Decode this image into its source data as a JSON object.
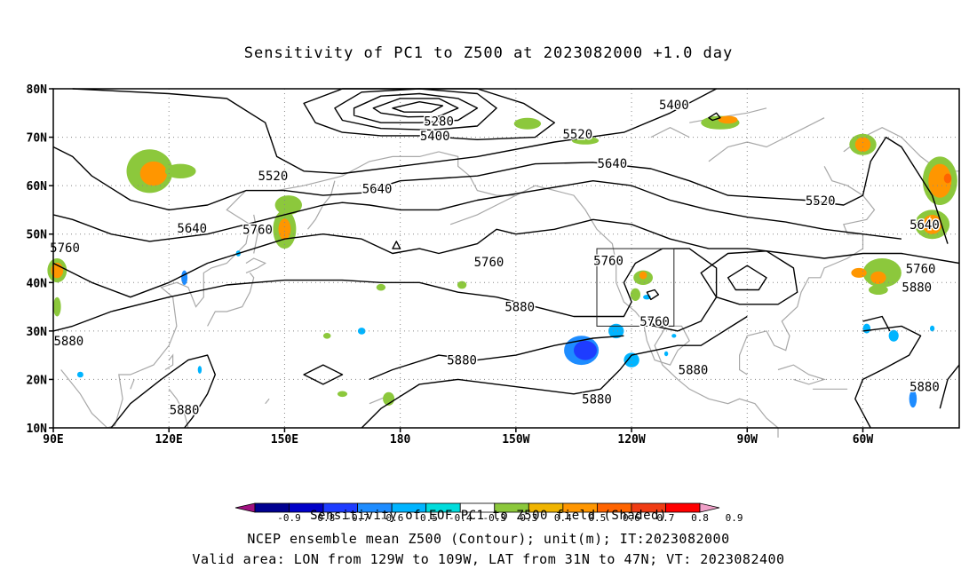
{
  "chart_data": {
    "type": "heatmap",
    "title": "Sensitivity of PC1 to Z500 at 2023082000 +1.0 day",
    "x_ticks": [
      "90E",
      "120E",
      "150E",
      "180",
      "150W",
      "120W",
      "90W",
      "60W"
    ],
    "y_ticks": [
      "80N",
      "70N",
      "60N",
      "50N",
      "40N",
      "30N",
      "20N",
      "10N"
    ],
    "xlim_deg_east": [
      90,
      325
    ],
    "ylim_deg_north": [
      10,
      80
    ],
    "grid": true,
    "colorbar": {
      "labels": [
        "-0.9",
        "-0.8",
        "-0.7",
        "-0.6",
        "-0.5",
        "-0.4",
        "-0.3",
        "0.3",
        "0.4",
        "0.5",
        "0.6",
        "0.7",
        "0.8",
        "0.9"
      ],
      "colors": [
        "#a01080",
        "#000090",
        "#0000c8",
        "#1e3cff",
        "#1e8cff",
        "#00b4ff",
        "#00dcdc",
        "#ffffff",
        "#8cc83c",
        "#f0b400",
        "#ff9600",
        "#ff6400",
        "#f03c14",
        "#ff0000",
        "#f0a0c8"
      ]
    },
    "contour_labels": [
      {
        "text": "5280",
        "lon": 190,
        "lat": 73.3
      },
      {
        "text": "5400",
        "lon": 189,
        "lat": 70.3
      },
      {
        "text": "5400",
        "lon": 251,
        "lat": 76.7
      },
      {
        "text": "5520",
        "lon": 147,
        "lat": 62.0
      },
      {
        "text": "5520",
        "lon": 226,
        "lat": 70.7
      },
      {
        "text": "5520",
        "lon": 289,
        "lat": 56.9
      },
      {
        "text": "5640",
        "lon": 174,
        "lat": 59.4
      },
      {
        "text": "5640",
        "lon": 235,
        "lat": 64.6
      },
      {
        "text": "5640",
        "lon": 126,
        "lat": 51.2
      },
      {
        "text": "5640",
        "lon": 316,
        "lat": 52.0
      },
      {
        "text": "5760",
        "lon": 93,
        "lat": 47.2
      },
      {
        "text": "5760",
        "lon": 143,
        "lat": 51.0
      },
      {
        "text": "5760",
        "lon": 203,
        "lat": 44.3
      },
      {
        "text": "5760",
        "lon": 234,
        "lat": 44.5
      },
      {
        "text": "5760",
        "lon": 246,
        "lat": 32.0
      },
      {
        "text": "5760",
        "lon": 315,
        "lat": 42.9
      },
      {
        "text": "5880",
        "lon": 94,
        "lat": 28.0
      },
      {
        "text": "5880",
        "lon": 196,
        "lat": 24.0
      },
      {
        "text": "5880",
        "lon": 211,
        "lat": 35.0
      },
      {
        "text": "5880",
        "lon": 124,
        "lat": 13.8
      },
      {
        "text": "5880",
        "lon": 231,
        "lat": 16.0
      },
      {
        "text": "5880",
        "lon": 256,
        "lat": 22.0
      },
      {
        "text": "5880",
        "lon": 314,
        "lat": 39.0
      },
      {
        "text": "5880",
        "lon": 316,
        "lat": 18.5
      }
    ],
    "valid_area": {
      "lon": [
        -129,
        -109
      ],
      "lat": [
        31,
        47
      ]
    }
  },
  "footer": {
    "line1": "Sensitivity of EOF PC1 to Z500 field (Shaded)",
    "line2": "NCEP ensemble mean Z500 (Contour); unit(m); IT:2023082000",
    "line3": "Valid area: LON from 129W to 109W, LAT from 31N to 47N; VT: 2023082400"
  }
}
